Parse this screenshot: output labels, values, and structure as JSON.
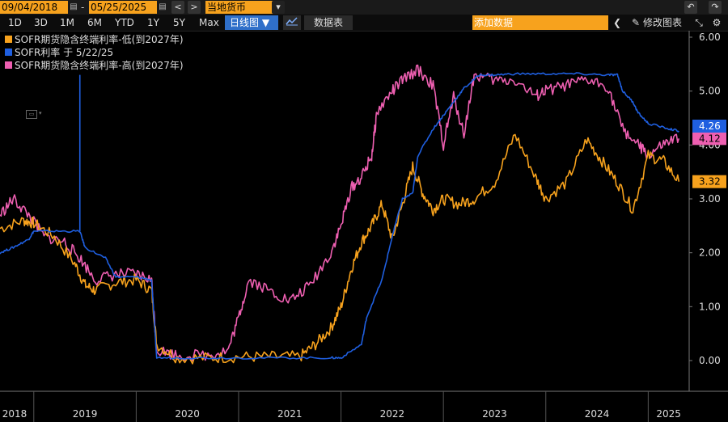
{
  "toolbar": {
    "start_date": "09/04/2018",
    "end_date": "05/25/2025",
    "currency": "当地货币",
    "back_icon": "back-arrow",
    "forward_icon": "forward-arrow",
    "undo_icon": "undo-icon",
    "redo_icon": "redo-icon"
  },
  "ranges": [
    "1D",
    "3D",
    "1M",
    "6M",
    "YTD",
    "1Y",
    "5Y",
    "Max"
  ],
  "view_mode": "日线图 ▼",
  "table_label": "数据表",
  "add_data_placeholder": "添加数据",
  "edit_chart_label": "修改图表",
  "colors": {
    "orange": "#f7a21d",
    "blue": "#1f5fe0",
    "pink": "#ee5fb1"
  },
  "chart_data": {
    "type": "line",
    "ylim": [
      -0.5,
      6.0
    ],
    "y_ticks": [
      "6.00",
      "5.00",
      "4.00",
      "3.00",
      "2.00",
      "1.00",
      "0.00"
    ],
    "y_tick_values": [
      6,
      5,
      4,
      3,
      2,
      1,
      0
    ],
    "x_tick_labels": [
      "2018",
      "2019",
      "2020",
      "2021",
      "2022",
      "2023",
      "2024",
      "2025"
    ],
    "x_tick_positions": [
      2018.5,
      2019.5,
      2020.5,
      2021.5,
      2022.5,
      2023.5,
      2024.5,
      2025.2
    ],
    "x_range": [
      2018.67,
      2025.4
    ],
    "series": [
      {
        "name": "SOFR期货隐含终端利率-低(到2027年)",
        "color": "#f7a21d",
        "last_label": "3.32",
        "x": [
          2018.67,
          2018.9,
          2019.0,
          2019.2,
          2019.4,
          2019.5,
          2019.6,
          2019.8,
          2020.0,
          2020.15,
          2020.2,
          2020.4,
          2020.7,
          2021.0,
          2021.3,
          2021.6,
          2021.75,
          2021.9,
          2022.0,
          2022.1,
          2022.2,
          2022.3,
          2022.4,
          2022.5,
          2022.6,
          2022.7,
          2022.8,
          2022.9,
          2023.0,
          2023.15,
          2023.3,
          2023.5,
          2023.7,
          2023.9,
          2024.0,
          2024.2,
          2024.4,
          2024.55,
          2024.7,
          2024.85,
          2025.0,
          2025.15,
          2025.3
        ],
        "y": [
          2.45,
          2.6,
          2.55,
          2.3,
          1.8,
          1.4,
          1.3,
          1.45,
          1.5,
          1.3,
          0.3,
          0.05,
          0.05,
          0.07,
          0.07,
          0.07,
          0.3,
          0.6,
          1.0,
          1.7,
          2.2,
          2.5,
          2.9,
          2.25,
          2.9,
          3.6,
          3.1,
          2.8,
          3.0,
          2.9,
          3.0,
          3.3,
          4.2,
          3.4,
          3.0,
          3.3,
          4.1,
          3.7,
          3.3,
          2.8,
          3.8,
          3.7,
          3.32
        ]
      },
      {
        "name": "SOFR利率 于 5/22/25",
        "color": "#1f5fe0",
        "last_label": "4.26",
        "x": [
          2018.67,
          2018.8,
          2018.95,
          2019.0,
          2019.2,
          2019.45,
          2019.5,
          2019.7,
          2019.8,
          2020.0,
          2020.15,
          2020.2,
          2020.5,
          2021.0,
          2021.5,
          2021.9,
          2022.0,
          2022.2,
          2022.25,
          2022.4,
          2022.5,
          2022.6,
          2022.7,
          2022.75,
          2022.9,
          2023.0,
          2023.1,
          2023.2,
          2023.35,
          2023.5,
          2023.7,
          2024.0,
          2024.3,
          2024.6,
          2024.7,
          2024.75,
          2024.85,
          2024.9,
          2025.0,
          2025.2,
          2025.3
        ],
        "y": [
          2.0,
          2.1,
          2.25,
          2.4,
          2.4,
          2.4,
          2.1,
          1.9,
          1.55,
          1.55,
          1.5,
          0.05,
          0.05,
          0.05,
          0.05,
          0.05,
          0.05,
          0.3,
          0.8,
          1.5,
          2.3,
          3.0,
          3.1,
          3.8,
          4.3,
          4.55,
          4.8,
          5.05,
          5.3,
          5.3,
          5.32,
          5.32,
          5.32,
          5.3,
          5.3,
          5.0,
          4.8,
          4.6,
          4.4,
          4.3,
          4.26
        ]
      },
      {
        "name": "SOFR期货隐含终端利率-高(到2027年)",
        "color": "#ee5fb1",
        "last_label": "4.12",
        "x": [
          2018.67,
          2018.8,
          2018.95,
          2019.1,
          2019.3,
          2019.45,
          2019.6,
          2019.8,
          2020.0,
          2020.15,
          2020.2,
          2020.4,
          2020.7,
          2020.9,
          2021.0,
          2021.1,
          2021.3,
          2021.5,
          2021.7,
          2021.9,
          2022.0,
          2022.1,
          2022.2,
          2022.3,
          2022.35,
          2022.5,
          2022.6,
          2022.75,
          2022.9,
          2023.0,
          2023.1,
          2023.2,
          2023.3,
          2023.5,
          2023.7,
          2023.9,
          2024.0,
          2024.2,
          2024.4,
          2024.6,
          2024.75,
          2024.9,
          2025.0,
          2025.15,
          2025.3
        ],
        "y": [
          2.7,
          3.0,
          2.7,
          2.3,
          2.2,
          1.9,
          1.5,
          1.6,
          1.6,
          1.5,
          0.2,
          0.1,
          0.1,
          0.2,
          0.8,
          1.5,
          1.3,
          1.1,
          1.4,
          2.0,
          2.5,
          3.2,
          3.4,
          3.8,
          4.6,
          5.0,
          5.2,
          5.4,
          5.1,
          4.0,
          4.9,
          4.2,
          5.3,
          5.2,
          5.2,
          4.9,
          5.0,
          5.1,
          5.2,
          5.1,
          4.3,
          4.0,
          3.8,
          4.0,
          4.12
        ]
      }
    ]
  }
}
